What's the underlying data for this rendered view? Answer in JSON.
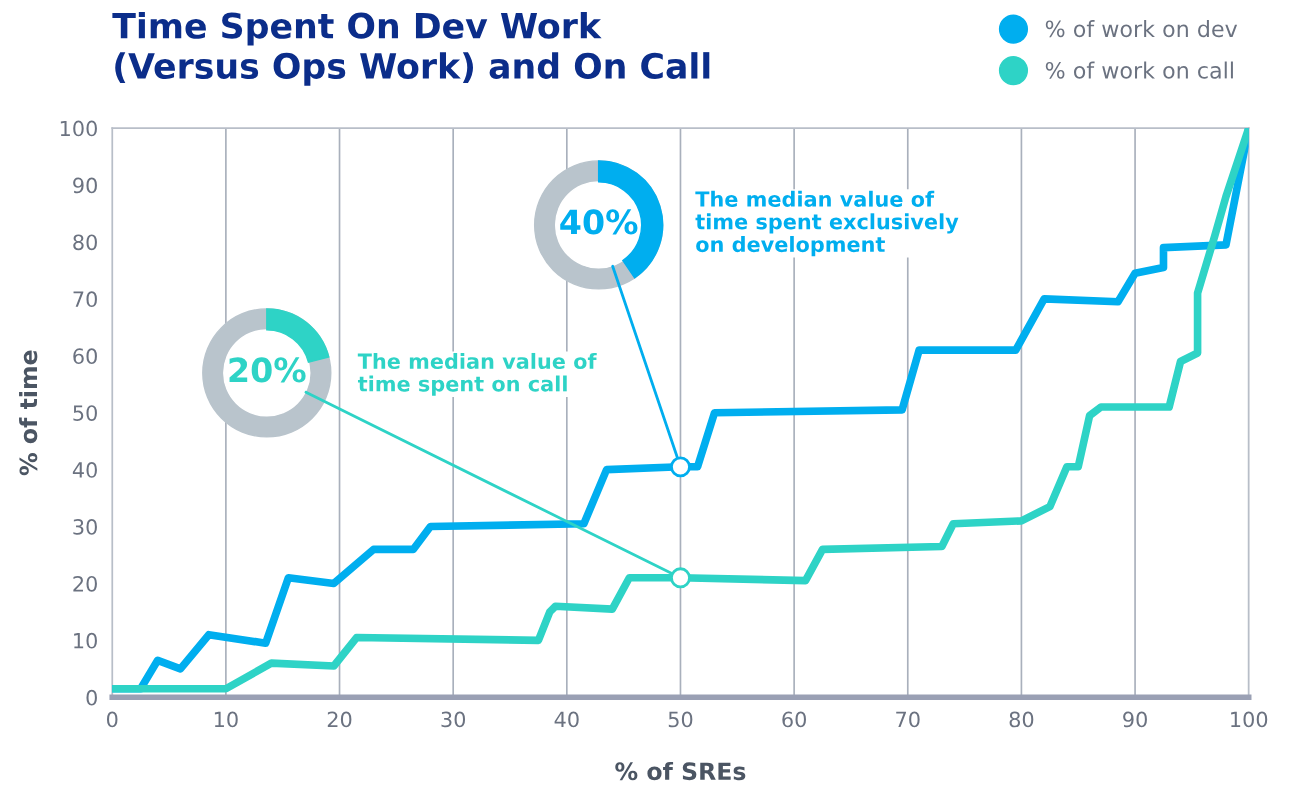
{
  "chart_data": {
    "type": "line",
    "title": "Time Spent On Dev Work\n(Versus Ops Work) and On Call",
    "xlabel": "% of SREs",
    "ylabel": "% of time",
    "xlim": [
      0,
      100
    ],
    "ylim": [
      0,
      100
    ],
    "xticks": [
      0,
      10,
      20,
      30,
      40,
      50,
      60,
      70,
      80,
      90,
      100
    ],
    "yticks": [
      0,
      10,
      20,
      30,
      40,
      50,
      60,
      70,
      80,
      90,
      100
    ],
    "grid": "x",
    "legend": "top right",
    "marker": "none",
    "line_style": "solid",
    "series": [
      {
        "name": "% of work on dev",
        "color": "#00aeef",
        "x": [
          0,
          2.5,
          4,
          6,
          8.5,
          13.5,
          15.5,
          19.5,
          23,
          26.5,
          28,
          41.5,
          43.5,
          50,
          51.5,
          53,
          69.5,
          71,
          79.5,
          82,
          88.5,
          90,
          92.5,
          92.5,
          98,
          100
        ],
        "values": [
          1.5,
          1.5,
          6.5,
          5,
          11,
          9.5,
          21,
          20,
          26,
          26,
          30,
          30.5,
          40,
          40.5,
          40.5,
          50,
          50.5,
          61,
          61,
          70,
          69.5,
          74.5,
          75.5,
          79,
          79.5,
          100
        ]
      },
      {
        "name": "% of work on call",
        "color": "#2ed3c6",
        "x": [
          0,
          10,
          14,
          19.5,
          21.5,
          37.5,
          38.5,
          39,
          44,
          45.5,
          50,
          61,
          62.5,
          73,
          74,
          80,
          82.5,
          84,
          85,
          86,
          87,
          93,
          94,
          95.5,
          95.5,
          97,
          98,
          100
        ],
        "values": [
          1.5,
          1.5,
          6,
          5.5,
          10.5,
          10,
          15,
          16,
          15.5,
          21,
          21,
          20.5,
          26,
          26.5,
          30.5,
          31,
          33.5,
          40.5,
          40.5,
          49.5,
          51,
          51,
          59,
          60.5,
          71,
          81,
          88,
          100
        ]
      }
    ],
    "annotations": [
      {
        "text": "40%",
        "x": 50,
        "y": 40.5
      },
      "The median value of\ntime spent exclusively\non development",
      {
        "text": "20%",
        "x": 50,
        "y": 21
      },
      "The median value of\ntime spent on call"
    ]
  }
}
